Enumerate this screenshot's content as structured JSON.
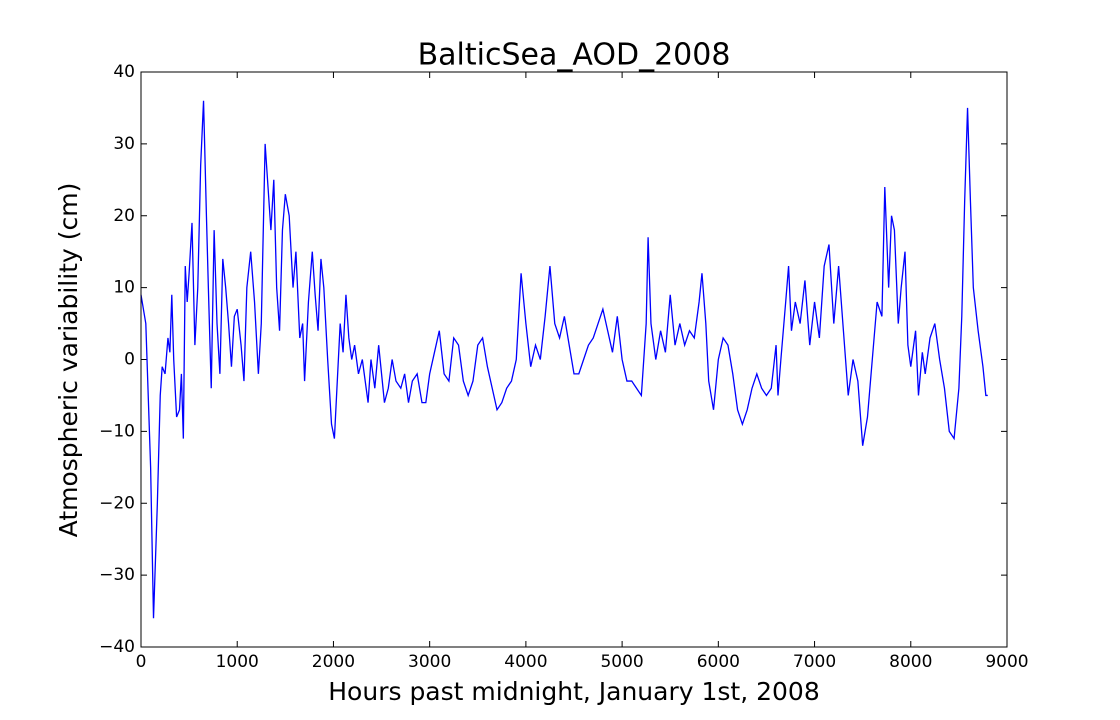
{
  "chart_data": {
    "type": "line",
    "title": "BalticSea_AOD_2008",
    "xlabel": "Hours past midnight, January 1st, 2008",
    "ylabel": "Atmospheric variability (cm)",
    "xlim": [
      0,
      9000
    ],
    "ylim": [
      -40,
      40
    ],
    "xticks": [
      0,
      1000,
      2000,
      3000,
      4000,
      5000,
      6000,
      7000,
      8000,
      9000
    ],
    "yticks": [
      {
        "value": -40,
        "label": "−40"
      },
      {
        "value": -30,
        "label": "−30"
      },
      {
        "value": -20,
        "label": "−20"
      },
      {
        "value": -10,
        "label": "−10"
      },
      0,
      10,
      20,
      30,
      40
    ],
    "series": [
      {
        "color": "#0000ff",
        "x": [
          0,
          50,
          100,
          130,
          170,
          200,
          220,
          250,
          280,
          300,
          320,
          340,
          370,
          400,
          420,
          440,
          460,
          480,
          500,
          530,
          560,
          590,
          620,
          650,
          680,
          700,
          730,
          760,
          790,
          820,
          850,
          880,
          910,
          940,
          970,
          1000,
          1040,
          1070,
          1100,
          1140,
          1180,
          1220,
          1250,
          1290,
          1320,
          1350,
          1380,
          1410,
          1440,
          1470,
          1500,
          1540,
          1580,
          1610,
          1650,
          1680,
          1700,
          1740,
          1780,
          1810,
          1840,
          1870,
          1900,
          1940,
          1980,
          2010,
          2040,
          2070,
          2100,
          2130,
          2160,
          2190,
          2220,
          2260,
          2300,
          2330,
          2360,
          2390,
          2430,
          2470,
          2500,
          2530,
          2570,
          2610,
          2650,
          2700,
          2740,
          2780,
          2820,
          2870,
          2920,
          2960,
          3000,
          3050,
          3100,
          3150,
          3200,
          3250,
          3300,
          3350,
          3400,
          3450,
          3500,
          3550,
          3600,
          3650,
          3700,
          3750,
          3800,
          3850,
          3900,
          3950,
          4000,
          4050,
          4100,
          4150,
          4200,
          4250,
          4300,
          4350,
          4400,
          4450,
          4500,
          4550,
          4600,
          4650,
          4700,
          4750,
          4800,
          4850,
          4900,
          4950,
          5000,
          5050,
          5100,
          5150,
          5200,
          5250,
          5270,
          5300,
          5350,
          5400,
          5450,
          5500,
          5550,
          5600,
          5650,
          5700,
          5750,
          5800,
          5830,
          5870,
          5900,
          5950,
          6000,
          6050,
          6100,
          6150,
          6200,
          6250,
          6300,
          6350,
          6400,
          6450,
          6500,
          6550,
          6600,
          6620,
          6650,
          6700,
          6730,
          6760,
          6800,
          6850,
          6900,
          6950,
          7000,
          7050,
          7100,
          7150,
          7200,
          7250,
          7300,
          7350,
          7400,
          7450,
          7500,
          7550,
          7600,
          7650,
          7700,
          7730,
          7770,
          7800,
          7830,
          7870,
          7900,
          7940,
          7970,
          8000,
          8050,
          8080,
          8120,
          8150,
          8200,
          8250,
          8300,
          8350,
          8400,
          8450,
          8500,
          8530,
          8560,
          8590,
          8620,
          8650,
          8700,
          8750,
          8780,
          8800
        ],
        "values": [
          9,
          5,
          -15,
          -36,
          -20,
          -5,
          -1,
          -2,
          3,
          1,
          9,
          0,
          -8,
          -7,
          -2,
          -11,
          13,
          8,
          12,
          19,
          2,
          10,
          27,
          36,
          20,
          10,
          -4,
          18,
          5,
          -2,
          14,
          10,
          5,
          -1,
          6,
          7,
          2,
          -3,
          10,
          15,
          8,
          -2,
          5,
          30,
          24,
          18,
          25,
          10,
          4,
          18,
          23,
          20,
          10,
          15,
          3,
          5,
          -3,
          8,
          15,
          9,
          4,
          14,
          10,
          0,
          -9,
          -11,
          -3,
          5,
          1,
          9,
          3,
          0,
          2,
          -2,
          0,
          -3,
          -6,
          0,
          -4,
          2,
          -2,
          -6,
          -4,
          0,
          -3,
          -4,
          -2,
          -6,
          -3,
          -2,
          -6,
          -6,
          -2,
          1,
          4,
          -2,
          -3,
          3,
          2,
          -3,
          -5,
          -3,
          2,
          3,
          -1,
          -4,
          -7,
          -6,
          -4,
          -3,
          0,
          12,
          5,
          -1,
          2,
          0,
          6,
          13,
          5,
          3,
          6,
          2,
          -2,
          -2,
          0,
          2,
          3,
          5,
          7,
          4,
          1,
          6,
          0,
          -3,
          -3,
          -4,
          -5,
          5,
          17,
          5,
          0,
          4,
          1,
          9,
          2,
          5,
          2,
          4,
          3,
          8,
          12,
          5,
          -3,
          -7,
          0,
          3,
          2,
          -2,
          -7,
          -9,
          -7,
          -4,
          -2,
          -4,
          -5,
          -4,
          2,
          -5,
          0,
          8,
          13,
          4,
          8,
          5,
          11,
          2,
          8,
          3,
          13,
          16,
          5,
          13,
          4,
          -5,
          0,
          -3,
          -12,
          -8,
          0,
          8,
          6,
          24,
          10,
          20,
          18,
          5,
          10,
          15,
          2,
          -1,
          4,
          -5,
          1,
          -2,
          3,
          5,
          0,
          -4,
          -10,
          -11,
          -4,
          6,
          22,
          35,
          22,
          10,
          4,
          -1,
          -5,
          -5
        ]
      }
    ]
  }
}
